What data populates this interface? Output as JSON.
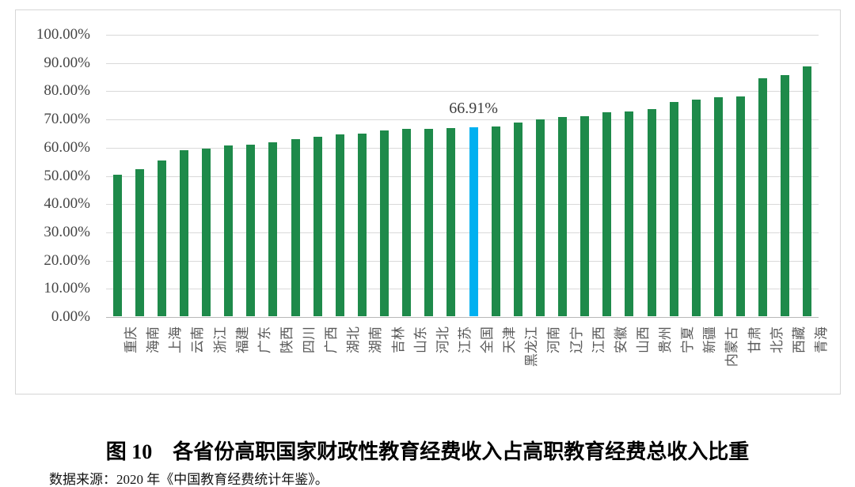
{
  "figure": {
    "title": "图 10　各省份高职国家财政性教育经费收入占高职教育经费总收入比重",
    "source": "数据来源：2020 年《中国教育经费统计年鉴》。"
  },
  "chart_data": {
    "type": "bar",
    "title": "各省份高职国家财政性教育经费收入占高职教育经费总收入比重",
    "categories": [
      "重庆",
      "海南",
      "上海",
      "云南",
      "浙江",
      "福建",
      "广东",
      "陕西",
      "四川",
      "广西",
      "湖北",
      "湖南",
      "吉林",
      "山东",
      "河北",
      "江苏",
      "全国",
      "天津",
      "黑龙江",
      "河南",
      "辽宁",
      "江西",
      "安徽",
      "山西",
      "贵州",
      "宁夏",
      "新疆",
      "内蒙古",
      "甘肃",
      "北京",
      "西藏",
      "青海"
    ],
    "values": [
      50.1,
      52.2,
      55.2,
      58.7,
      59.4,
      60.4,
      60.8,
      61.7,
      62.8,
      63.7,
      64.5,
      64.8,
      65.7,
      66.3,
      66.5,
      66.8,
      66.91,
      67.1,
      68.5,
      69.7,
      70.7,
      70.9,
      72.2,
      72.5,
      73.5,
      75.8,
      76.8,
      77.5,
      78.0,
      84.3,
      85.4,
      88.5
    ],
    "highlight_category": "全国",
    "highlight_index": 16,
    "annotation": {
      "text": "66.91%",
      "category": "全国"
    },
    "xlabel": "",
    "ylabel": "",
    "ylim": [
      0,
      100
    ],
    "y_ticks": [
      "0.00%",
      "10.00%",
      "20.00%",
      "30.00%",
      "40.00%",
      "50.00%",
      "60.00%",
      "70.00%",
      "80.00%",
      "90.00%",
      "100.00%"
    ],
    "grid": true,
    "legend": false,
    "colors": {
      "bar": "#1e8a4a",
      "highlight": "#00b0f0",
      "gridline": "#d9d9d9",
      "axis_line": "#b7b7b7",
      "tick_text": "#595959",
      "annotation_text": "#3d3d3d"
    }
  }
}
